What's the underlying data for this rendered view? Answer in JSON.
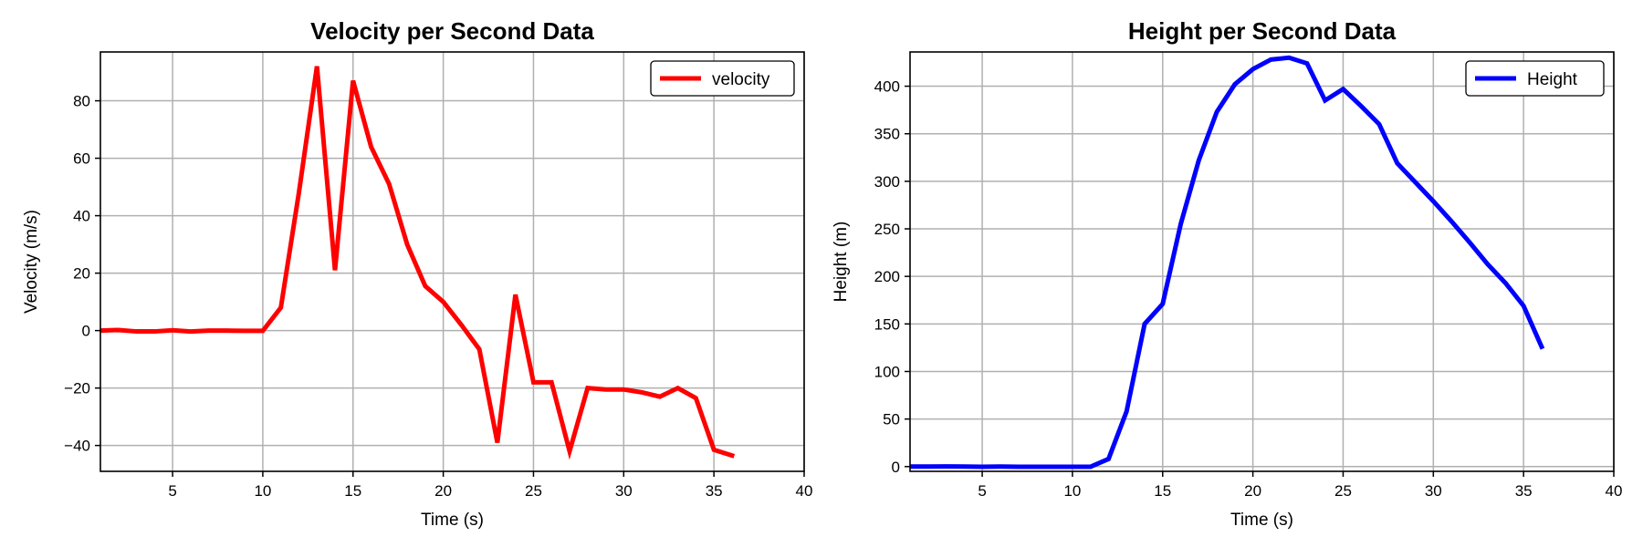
{
  "chart_data": [
    {
      "type": "line",
      "title": "Velocity per Second Data",
      "xlabel": "Time (s)",
      "ylabel": "Velocity (m/s)",
      "xlim": [
        1,
        40
      ],
      "ylim": [
        -49,
        97
      ],
      "xticks": [
        5,
        10,
        15,
        20,
        25,
        30,
        35,
        40
      ],
      "yticks": [
        -40,
        -20,
        0,
        20,
        40,
        60,
        80
      ],
      "grid": true,
      "legend_position": "top-right",
      "series": [
        {
          "name": "velocity",
          "color": "#ff0000",
          "x": [
            1,
            2,
            3,
            4,
            5,
            6,
            7,
            8,
            9,
            10,
            11,
            12,
            13,
            14,
            15,
            16,
            17,
            18,
            19,
            20,
            21,
            22,
            23,
            24,
            25,
            26,
            27,
            28,
            29,
            30,
            31,
            32,
            33,
            34,
            35,
            36
          ],
          "y": [
            0,
            0.2,
            -0.3,
            -0.3,
            0.1,
            -0.3,
            0,
            0,
            -0.1,
            -0.1,
            8,
            48,
            92,
            21,
            87,
            64,
            51,
            30,
            15.5,
            10,
            2,
            -6.5,
            -39,
            12.5,
            -18,
            -18,
            -42,
            -20,
            -20.5,
            -20.5,
            -21.5,
            -23,
            -20,
            -23.5,
            -41.5,
            -43.5
          ]
        }
      ]
    },
    {
      "type": "line",
      "title": "Height per Second Data",
      "xlabel": "Time (s)",
      "ylabel": "Height (m)",
      "xlim": [
        1,
        40
      ],
      "ylim": [
        -5,
        436
      ],
      "xticks": [
        5,
        10,
        15,
        20,
        25,
        30,
        35,
        40
      ],
      "yticks": [
        0,
        50,
        100,
        150,
        200,
        250,
        300,
        350,
        400
      ],
      "grid": true,
      "legend_position": "top-right",
      "series": [
        {
          "name": "Height",
          "color": "#0000ff",
          "x": [
            1,
            2,
            3,
            4,
            5,
            6,
            7,
            8,
            9,
            10,
            11,
            12,
            13,
            14,
            15,
            16,
            17,
            18,
            19,
            20,
            21,
            22,
            23,
            24,
            25,
            26,
            27,
            28,
            29,
            30,
            31,
            32,
            33,
            34,
            35,
            36
          ],
          "y": [
            0,
            0,
            0.2,
            0,
            -0.2,
            0,
            -0.2,
            -0.2,
            -0.2,
            -0.2,
            -0.2,
            8,
            58,
            150,
            171,
            255,
            322,
            373,
            402,
            418,
            428,
            430,
            424,
            385,
            397,
            379,
            360,
            319,
            299,
            279,
            258,
            236,
            213,
            193,
            169,
            126
          ]
        }
      ]
    }
  ]
}
